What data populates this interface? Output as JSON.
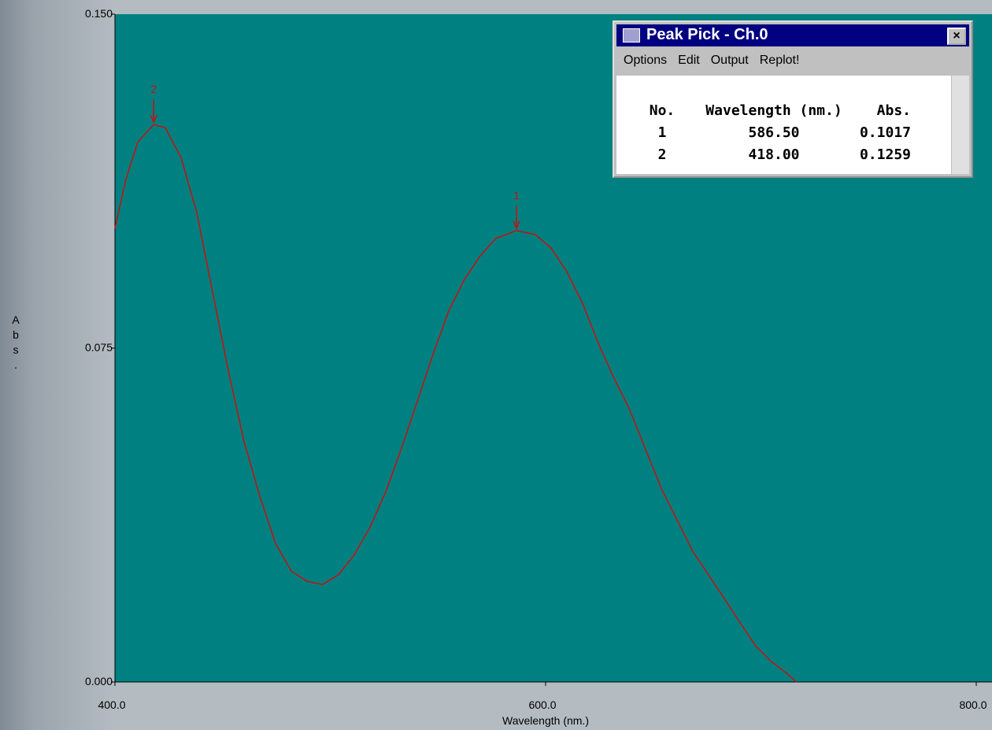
{
  "chart_data": {
    "type": "line",
    "xlabel": "Wavelength (nm.)",
    "ylabel": "Abs.",
    "xlim": [
      400,
      800
    ],
    "ylim": [
      0,
      0.15
    ],
    "xticks": [
      {
        "value": 400,
        "label": "400.0"
      },
      {
        "value": 600,
        "label": "600.0"
      },
      {
        "value": 800,
        "label": "800.0"
      }
    ],
    "yticks": [
      {
        "value": 0,
        "label": "0.000"
      },
      0.075,
      {
        "value": 0.15,
        "label": "0.150"
      }
    ],
    "x": [
      400,
      405.1,
      410.6,
      418,
      423.4,
      430.7,
      438,
      445.3,
      452.6,
      459.9,
      467.3,
      474.6,
      481.9,
      489.2,
      496.5,
      503.8,
      511.1,
      518.4,
      525.7,
      533,
      540.4,
      547.7,
      555,
      562.3,
      569.6,
      576.9,
      586.4,
      595.2,
      602.5,
      609.8,
      617.1,
      624.4,
      631.7,
      639,
      646.3,
      653.7,
      661,
      668.3,
      675.6,
      682.9,
      690.2,
      697.5,
      704.8,
      712.1,
      716.5
    ],
    "series": [
      {
        "color": "#c81010",
        "values": [
          0.1019,
          0.1129,
          0.1213,
          0.1252,
          0.1245,
          0.1178,
          0.1054,
          0.0877,
          0.07,
          0.0541,
          0.0417,
          0.0311,
          0.0249,
          0.0226,
          0.0219,
          0.0241,
          0.0285,
          0.0347,
          0.0426,
          0.0524,
          0.063,
          0.0736,
          0.0833,
          0.0904,
          0.0957,
          0.0996,
          0.1014,
          0.1005,
          0.0975,
          0.0922,
          0.0851,
          0.0762,
          0.0683,
          0.0612,
          0.0524,
          0.0435,
          0.0364,
          0.0294,
          0.0241,
          0.0188,
          0.0134,
          0.0081,
          0.0046,
          0.0019,
          0
        ]
      }
    ],
    "annotations": [
      {
        "label": "1",
        "x": 586.5,
        "y": 0.1014
      },
      {
        "label": "2",
        "x": 418,
        "y": 0.1252
      }
    ]
  },
  "peak_window": {
    "title": "Peak Pick - Ch.0",
    "menu": [
      "Options",
      "Edit",
      "Output",
      "Replot!"
    ],
    "columns": [
      "No.",
      "Wavelength (nm.)",
      "Abs."
    ],
    "rows": [
      [
        "1",
        "586.50",
        "0.1017"
      ],
      [
        "2",
        "418.00",
        "0.1259"
      ]
    ]
  }
}
